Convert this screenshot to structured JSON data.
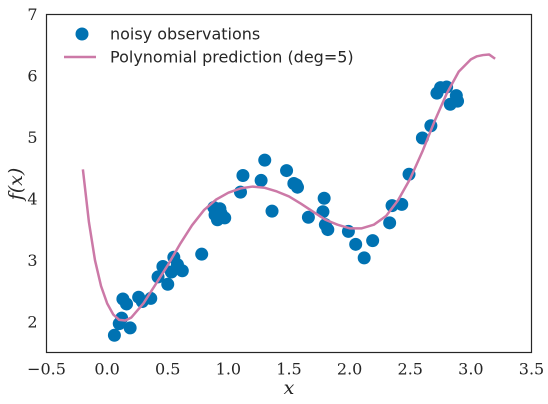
{
  "chart_data": {
    "type": "scatter",
    "xlabel": "x",
    "ylabel": "f(x)",
    "xlim": [
      -0.5,
      3.5
    ],
    "ylim": [
      1.5,
      7.0
    ],
    "xticks": [
      -0.5,
      0.0,
      0.5,
      1.0,
      1.5,
      2.0,
      2.5,
      3.0,
      3.5
    ],
    "yticks": [
      2,
      3,
      4,
      5,
      6,
      7
    ],
    "xtick_labels": [
      "−0.5",
      "0.0",
      "0.5",
      "1.0",
      "1.5",
      "2.0",
      "2.5",
      "3.0",
      "3.5"
    ],
    "ytick_labels": [
      "2",
      "3",
      "4",
      "5",
      "6",
      "7"
    ],
    "grid": false,
    "legend_position": "upper-left",
    "colors": {
      "points": "#0072b2",
      "curve": "#cc79a7",
      "text": "#262626",
      "frame": "#262626"
    },
    "series": [
      {
        "name": "noisy observations",
        "type": "scatter",
        "points": [
          [
            0.06,
            1.78
          ],
          [
            0.1,
            1.97
          ],
          [
            0.12,
            2.06
          ],
          [
            0.13,
            2.37
          ],
          [
            0.16,
            2.29
          ],
          [
            0.19,
            1.9
          ],
          [
            0.26,
            2.4
          ],
          [
            0.29,
            2.33
          ],
          [
            0.36,
            2.38
          ],
          [
            0.42,
            2.73
          ],
          [
            0.46,
            2.9
          ],
          [
            0.5,
            2.61
          ],
          [
            0.53,
            2.81
          ],
          [
            0.55,
            3.05
          ],
          [
            0.58,
            2.93
          ],
          [
            0.62,
            2.83
          ],
          [
            0.78,
            3.1
          ],
          [
            0.88,
            3.86
          ],
          [
            0.89,
            3.74
          ],
          [
            0.91,
            3.66
          ],
          [
            0.93,
            3.84
          ],
          [
            0.94,
            3.76
          ],
          [
            0.97,
            3.69
          ],
          [
            1.1,
            4.11
          ],
          [
            1.12,
            4.38
          ],
          [
            1.27,
            4.3
          ],
          [
            1.3,
            4.63
          ],
          [
            1.36,
            3.8
          ],
          [
            1.48,
            4.46
          ],
          [
            1.54,
            4.25
          ],
          [
            1.56,
            4.23
          ],
          [
            1.57,
            4.19
          ],
          [
            1.66,
            3.7
          ],
          [
            1.78,
            3.79
          ],
          [
            1.79,
            4.01
          ],
          [
            1.8,
            3.58
          ],
          [
            1.82,
            3.5
          ],
          [
            1.99,
            3.47
          ],
          [
            2.05,
            3.26
          ],
          [
            2.12,
            3.04
          ],
          [
            2.19,
            3.32
          ],
          [
            2.33,
            3.61
          ],
          [
            2.35,
            3.89
          ],
          [
            2.43,
            3.91
          ],
          [
            2.49,
            4.4
          ],
          [
            2.6,
            4.99
          ],
          [
            2.67,
            5.19
          ],
          [
            2.72,
            5.72
          ],
          [
            2.75,
            5.81
          ],
          [
            2.8,
            5.82
          ],
          [
            2.83,
            5.54
          ],
          [
            2.88,
            5.68
          ],
          [
            2.89,
            5.59
          ]
        ]
      },
      {
        "name": "Polynomial prediction (deg=5)",
        "type": "line",
        "points": [
          [
            -0.2,
            4.48
          ],
          [
            -0.15,
            3.62
          ],
          [
            -0.1,
            3.0
          ],
          [
            -0.05,
            2.58
          ],
          [
            0.0,
            2.3
          ],
          [
            0.05,
            2.12
          ],
          [
            0.1,
            2.03
          ],
          [
            0.15,
            2.02
          ],
          [
            0.2,
            2.07
          ],
          [
            0.3,
            2.3
          ],
          [
            0.4,
            2.61
          ],
          [
            0.5,
            2.92
          ],
          [
            0.6,
            3.26
          ],
          [
            0.7,
            3.57
          ],
          [
            0.8,
            3.82
          ],
          [
            0.9,
            3.99
          ],
          [
            1.0,
            4.1
          ],
          [
            1.1,
            4.17
          ],
          [
            1.2,
            4.2
          ],
          [
            1.3,
            4.18
          ],
          [
            1.4,
            4.12
          ],
          [
            1.5,
            4.04
          ],
          [
            1.6,
            3.92
          ],
          [
            1.7,
            3.79
          ],
          [
            1.8,
            3.66
          ],
          [
            1.9,
            3.58
          ],
          [
            2.0,
            3.52
          ],
          [
            2.1,
            3.52
          ],
          [
            2.2,
            3.58
          ],
          [
            2.3,
            3.72
          ],
          [
            2.4,
            3.98
          ],
          [
            2.5,
            4.33
          ],
          [
            2.6,
            4.77
          ],
          [
            2.7,
            5.26
          ],
          [
            2.8,
            5.71
          ],
          [
            2.9,
            6.07
          ],
          [
            3.0,
            6.27
          ],
          [
            3.05,
            6.32
          ],
          [
            3.1,
            6.34
          ],
          [
            3.15,
            6.35
          ],
          [
            3.2,
            6.28
          ]
        ]
      }
    ]
  }
}
